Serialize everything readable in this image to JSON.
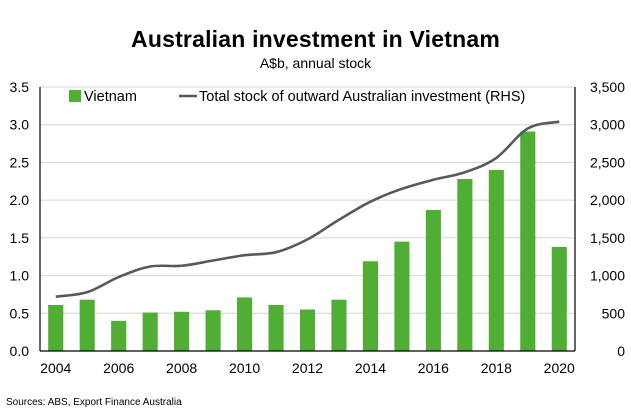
{
  "chart_data": {
    "type": "bar+line",
    "title": "Australian investment in Vietnam",
    "subtitle": "A$b, annual stock",
    "source": "Sources: ABS, Export Finance Australia",
    "categories": [
      "2004",
      "2005",
      "2006",
      "2007",
      "2008",
      "2009",
      "2010",
      "2011",
      "2012",
      "2013",
      "2014",
      "2015",
      "2016",
      "2017",
      "2018",
      "2019",
      "2020"
    ],
    "x_tick_labels": [
      "2004",
      "2006",
      "2008",
      "2010",
      "2012",
      "2014",
      "2016",
      "2018",
      "2020"
    ],
    "series": [
      {
        "name": "Vietnam",
        "type": "bar",
        "axis": "left",
        "color": "#4fae33",
        "values": [
          0.61,
          0.68,
          0.4,
          0.51,
          0.52,
          0.54,
          0.71,
          0.61,
          0.55,
          0.68,
          1.19,
          1.45,
          1.87,
          2.28,
          2.4,
          2.91,
          1.38
        ]
      },
      {
        "name": "Total stock of outward Australian investment (RHS)",
        "type": "line",
        "axis": "right",
        "color": "#595959",
        "values": [
          720,
          780,
          980,
          1120,
          1130,
          1200,
          1270,
          1310,
          1480,
          1740,
          1980,
          2150,
          2270,
          2370,
          2560,
          2950,
          3040
        ]
      }
    ],
    "left_axis": {
      "min": 0,
      "max": 3.5,
      "ticks": [
        "0.0",
        "0.5",
        "1.0",
        "1.5",
        "2.0",
        "2.5",
        "3.0",
        "3.5"
      ]
    },
    "right_axis": {
      "min": 0,
      "max": 3500,
      "ticks": [
        "0",
        "500",
        "1,000",
        "1,500",
        "2,000",
        "2,500",
        "3,000",
        "3,500"
      ]
    },
    "grid": true,
    "legend_position": "top"
  }
}
